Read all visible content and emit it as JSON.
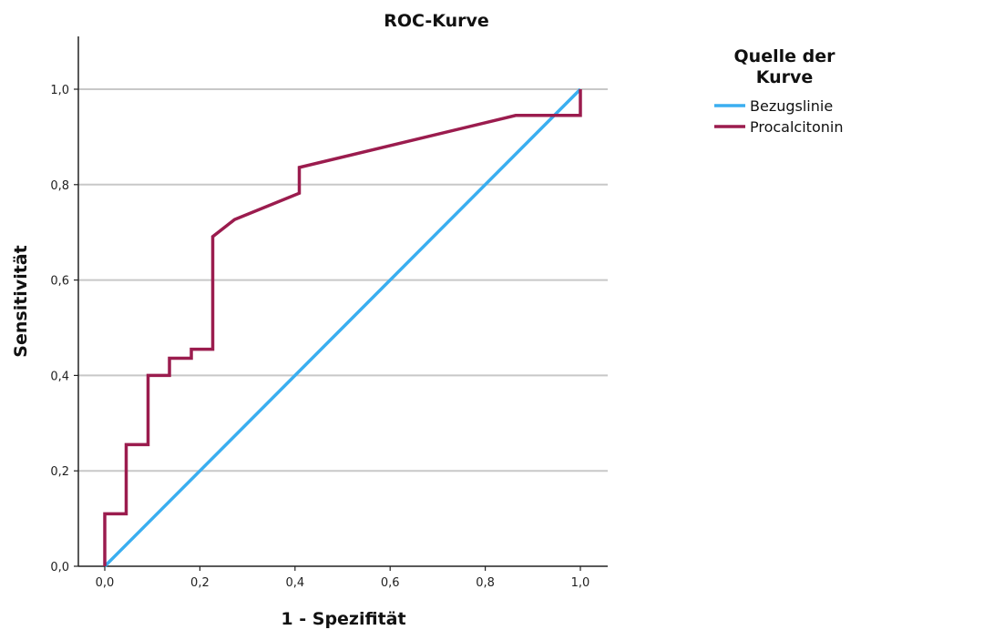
{
  "chart_data": {
    "type": "line",
    "title": "ROC-Kurve",
    "xlabel": "1 - Spezifität",
    "ylabel": "Sensitivität",
    "xlim": [
      0.0,
      1.0
    ],
    "ylim": [
      0.0,
      1.0
    ],
    "x_ticks": [
      "0,0",
      "0,2",
      "0,4",
      "0,6",
      "0,8",
      "1,0"
    ],
    "y_ticks": [
      "0,0",
      "0,2",
      "0,4",
      "0,6",
      "0,8",
      "1,0"
    ],
    "grid": "horizontal",
    "legend": {
      "title_lines": [
        "Quelle der",
        "Kurve"
      ],
      "position": "right"
    },
    "series": [
      {
        "name": "Bezugslinie",
        "color": "#3aaef0",
        "x": [
          0.0,
          1.0
        ],
        "y": [
          0.0,
          1.0
        ]
      },
      {
        "name": "Procalcitonin",
        "color": "#9b1c4e",
        "x": [
          0.0,
          0.0,
          0.045,
          0.045,
          0.091,
          0.091,
          0.136,
          0.136,
          0.182,
          0.182,
          0.227,
          0.227,
          0.273,
          0.409,
          0.409,
          0.864,
          1.0,
          1.0
        ],
        "y": [
          0.0,
          0.11,
          0.11,
          0.255,
          0.255,
          0.4,
          0.4,
          0.436,
          0.436,
          0.455,
          0.455,
          0.691,
          0.727,
          0.782,
          0.836,
          0.945,
          0.945,
          1.0
        ]
      }
    ]
  }
}
